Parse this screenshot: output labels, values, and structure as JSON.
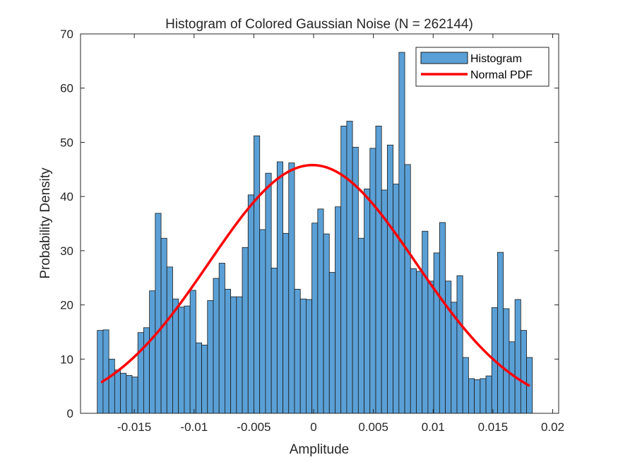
{
  "chart_data": {
    "type": "bar",
    "title": "Histogram of Colored Gaussian Noise (N = 262144)",
    "xlabel": "Amplitude",
    "ylabel": "Probability Density",
    "xlim": [
      -0.0195,
      0.0205
    ],
    "ylim": [
      0,
      70
    ],
    "xticks": [
      -0.015,
      -0.01,
      -0.005,
      0,
      0.005,
      0.01,
      0.015,
      0.02
    ],
    "xtick_labels": [
      "-0.015",
      "-0.01",
      "-0.005",
      "0",
      "0.005",
      "0.01",
      "0.015",
      "0.02"
    ],
    "yticks": [
      0,
      10,
      20,
      30,
      40,
      50,
      60,
      70
    ],
    "ytick_labels": [
      "0",
      "10",
      "20",
      "30",
      "40",
      "50",
      "60",
      "70"
    ],
    "grid": false,
    "legend_position": "top-right",
    "bin_edges_range": [
      -0.0181,
      0.0183
    ],
    "series": [
      {
        "name": "Histogram",
        "kind": "histogram",
        "color": "#5aa0d6",
        "edge_color": "#1a1a1a",
        "values": [
          15.3,
          15.4,
          10.0,
          8.0,
          7.4,
          7.0,
          6.7,
          14.9,
          15.8,
          22.6,
          36.9,
          32.3,
          27.0,
          21.1,
          19.6,
          19.8,
          22.7,
          13.0,
          12.6,
          20.8,
          24.9,
          27.7,
          22.9,
          21.5,
          21.5,
          30.6,
          40.3,
          51.2,
          33.9,
          44.3,
          26.8,
          46.4,
          33.2,
          46.2,
          22.9,
          21.1,
          21.0,
          35.1,
          37.7,
          33.1,
          26.0,
          38.1,
          53.0,
          53.9,
          49.1,
          32.3,
          41.4,
          48.9,
          53.0,
          41.2,
          49.5,
          42.3,
          66.6,
          45.9,
          26.7,
          26.2,
          33.6,
          24.4,
          29.6,
          35.2,
          24.4,
          20.5,
          25.4,
          10.3,
          6.4,
          6.2,
          6.4,
          6.9,
          19.5,
          29.7,
          19.3,
          13.2,
          21.0,
          15.3,
          10.3
        ]
      },
      {
        "name": "Normal PDF",
        "kind": "line",
        "color": "#ff0000",
        "mean": -0.0001,
        "peak": 45.8,
        "x": [
          -0.0177,
          -0.015,
          -0.0125,
          -0.01,
          -0.0075,
          -0.005,
          -0.0025,
          -0.0001,
          0.0025,
          0.005,
          0.0075,
          0.01,
          0.0125,
          0.015,
          0.018
        ],
        "y": [
          5.8,
          10.9,
          17.9,
          25.8,
          33.8,
          40.6,
          44.7,
          45.8,
          44.3,
          40.2,
          33.6,
          25.6,
          17.9,
          11.0,
          5.3
        ]
      }
    ]
  }
}
